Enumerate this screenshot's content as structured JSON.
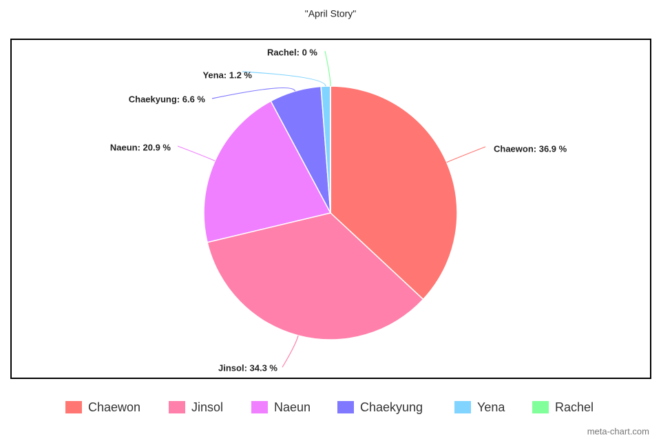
{
  "chart_data": {
    "type": "pie",
    "title": "\"April Story\"",
    "categories": [
      "Chaewon",
      "Jinsol",
      "Naeun",
      "Chaekyung",
      "Yena",
      "Rachel"
    ],
    "values": [
      36.9,
      34.3,
      20.9,
      6.6,
      1.2,
      0
    ],
    "value_labels": [
      "Chaewon: 36.9 %",
      "Jinsol: 34.3 %",
      "Naeun: 20.9 %",
      "Chaekyung: 6.6 %",
      "Yena: 1.2 %",
      "Rachel: 0 %"
    ],
    "colors": [
      "#ff7672",
      "#ff80aa",
      "#f080ff",
      "#8078ff",
      "#80d4ff",
      "#80ff9a"
    ],
    "watermark": "meta-chart.com"
  }
}
